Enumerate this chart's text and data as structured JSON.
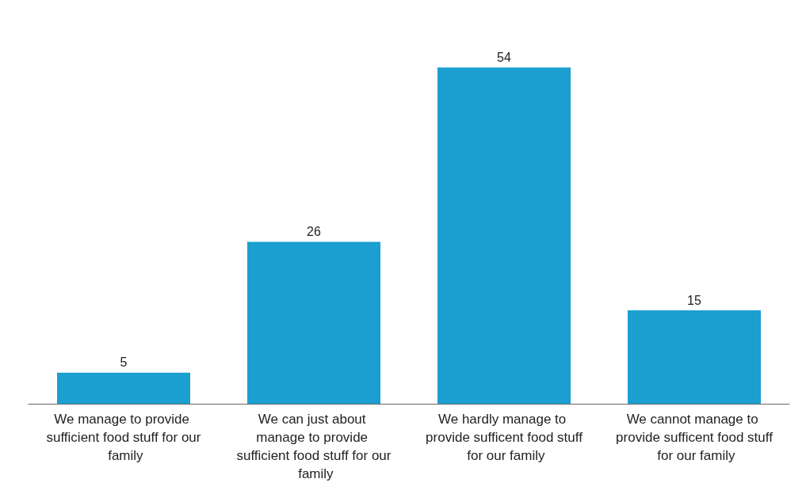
{
  "chart_data": {
    "type": "bar",
    "categories": [
      "We manage to provide sufficient food stuff for our family",
      "We can just about manage to provide sufficient food stuff for our family",
      "We hardly manage to provide sufficent food stuff for our family",
      "We cannot manage to provide sufficent food stuff for our family"
    ],
    "values": [
      5,
      26,
      54,
      15
    ],
    "color": "#1a9fd0",
    "data_labels": true,
    "tick_labels": "x"
  }
}
